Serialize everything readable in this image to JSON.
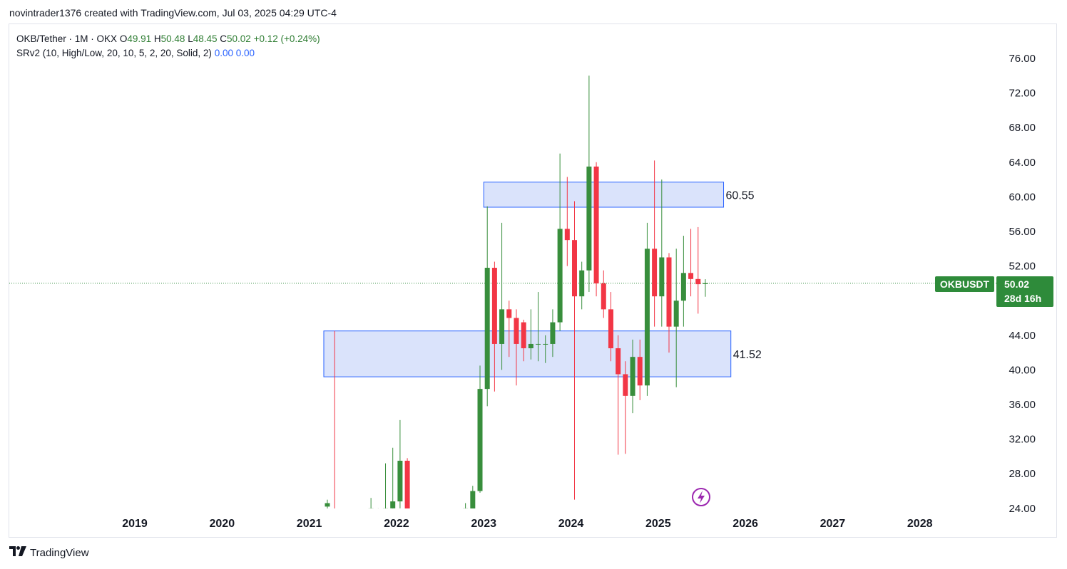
{
  "header": {
    "credit": "novintrader1376 created with TradingView.com, Jul 03, 2025 04:29 UTC-4"
  },
  "legend": {
    "symbol_line": "OKB/Tether · 1M · OKX",
    "o_label": "O",
    "o_value": "49.91",
    "h_label": "H",
    "h_value": "50.48",
    "l_label": "L",
    "l_value": "48.45",
    "c_label": "C",
    "c_value": "50.02",
    "change": "+0.12 (+0.24%)",
    "indicator": "SRv2 (10, High/Low, 20, 10, 5, 2, 20, Solid, 2)",
    "indicator_v1": "0.00",
    "indicator_v2": "0.00"
  },
  "price_tag": {
    "symbol": "OKBUSDT",
    "price": "50.02",
    "countdown": "28d 16h"
  },
  "footer": {
    "logo_text": "TradingView"
  },
  "colors": {
    "up": "#388e3c",
    "down": "#f23645",
    "zone_fill": "#d6e0fb",
    "zone_stroke": "#2962ff",
    "tag_bg": "#2e8b3a"
  },
  "chart_data": {
    "type": "candlestick",
    "interval": "1M",
    "y_ticks": [
      "76.00",
      "72.00",
      "68.00",
      "64.00",
      "60.00",
      "56.00",
      "52.00",
      "48.00",
      "44.00",
      "40.00",
      "36.00",
      "32.00",
      "28.00",
      "24.00"
    ],
    "ylim": [
      24,
      77
    ],
    "x_ticks": [
      "2019",
      "2020",
      "2021",
      "2022",
      "2023",
      "2024",
      "2025",
      "2026",
      "2027",
      "2028"
    ],
    "current_price": 50.02,
    "zones": [
      {
        "label": "60.55",
        "start": "2023-01",
        "end": "2025-10",
        "top": 61.7,
        "bottom": 58.8
      },
      {
        "label": "41.52",
        "start": "2021-03",
        "end": "2025-11",
        "top": 44.5,
        "bottom": 39.2
      }
    ],
    "candles": [
      {
        "t": "2021-03",
        "o": 24.2,
        "h": 25.0,
        "l": 23.0,
        "c": 24.6
      },
      {
        "t": "2021-04",
        "o": 23.8,
        "h": 44.5,
        "l": 23.0,
        "c": 23.0
      },
      {
        "t": "2021-09",
        "o": 23.5,
        "h": 25.2,
        "l": 23.0,
        "c": 24.0
      },
      {
        "t": "2021-10",
        "o": 23.2,
        "h": 24.0,
        "l": 22.8,
        "c": 23.8
      },
      {
        "t": "2021-11",
        "o": 23.6,
        "h": 29.2,
        "l": 23.0,
        "c": 24.0
      },
      {
        "t": "2021-12",
        "o": 24.0,
        "h": 31.0,
        "l": 23.8,
        "c": 24.8
      },
      {
        "t": "2022-01",
        "o": 24.8,
        "h": 34.2,
        "l": 24.0,
        "c": 29.5
      },
      {
        "t": "2022-02",
        "o": 29.5,
        "h": 29.8,
        "l": 23.0,
        "c": 23.2
      },
      {
        "t": "2022-10",
        "o": 23.4,
        "h": 24.6,
        "l": 23.0,
        "c": 24.0
      },
      {
        "t": "2022-11",
        "o": 23.8,
        "h": 26.6,
        "l": 23.0,
        "c": 26.0
      },
      {
        "t": "2022-12",
        "o": 26.0,
        "h": 40.5,
        "l": 25.8,
        "c": 37.8
      },
      {
        "t": "2023-01",
        "o": 37.8,
        "h": 58.9,
        "l": 35.8,
        "c": 51.8
      },
      {
        "t": "2023-02",
        "o": 51.8,
        "h": 52.5,
        "l": 37.5,
        "c": 43.0
      },
      {
        "t": "2023-03",
        "o": 43.0,
        "h": 57.0,
        "l": 40.0,
        "c": 47.0
      },
      {
        "t": "2023-04",
        "o": 47.0,
        "h": 48.0,
        "l": 41.5,
        "c": 46.0
      },
      {
        "t": "2023-05",
        "o": 46.0,
        "h": 47.0,
        "l": 38.2,
        "c": 43.0
      },
      {
        "t": "2023-06",
        "o": 45.5,
        "h": 45.8,
        "l": 41.0,
        "c": 42.5
      },
      {
        "t": "2023-07",
        "o": 42.5,
        "h": 47.0,
        "l": 41.2,
        "c": 43.0
      },
      {
        "t": "2023-08",
        "o": 43.0,
        "h": 49.0,
        "l": 41.0,
        "c": 43.0
      },
      {
        "t": "2023-09",
        "o": 43.0,
        "h": 44.0,
        "l": 40.8,
        "c": 43.0
      },
      {
        "t": "2023-10",
        "o": 43.0,
        "h": 47.0,
        "l": 41.5,
        "c": 45.5
      },
      {
        "t": "2023-11",
        "o": 45.5,
        "h": 65.0,
        "l": 44.5,
        "c": 56.3
      },
      {
        "t": "2023-12",
        "o": 56.3,
        "h": 62.3,
        "l": 52.0,
        "c": 55.0
      },
      {
        "t": "2024-01",
        "o": 55.0,
        "h": 59.5,
        "l": 25.0,
        "c": 48.5
      },
      {
        "t": "2024-02",
        "o": 48.5,
        "h": 52.5,
        "l": 47.0,
        "c": 51.5
      },
      {
        "t": "2024-03",
        "o": 51.5,
        "h": 74.0,
        "l": 49.0,
        "c": 63.5
      },
      {
        "t": "2024-04",
        "o": 63.5,
        "h": 64.0,
        "l": 48.5,
        "c": 50.0
      },
      {
        "t": "2024-05",
        "o": 50.0,
        "h": 51.5,
        "l": 46.0,
        "c": 47.0
      },
      {
        "t": "2024-06",
        "o": 47.0,
        "h": 49.0,
        "l": 41.0,
        "c": 42.5
      },
      {
        "t": "2024-07",
        "o": 42.5,
        "h": 44.0,
        "l": 30.2,
        "c": 39.5
      },
      {
        "t": "2024-08",
        "o": 39.5,
        "h": 41.0,
        "l": 30.3,
        "c": 37.0
      },
      {
        "t": "2024-09",
        "o": 37.0,
        "h": 43.5,
        "l": 35.0,
        "c": 41.5
      },
      {
        "t": "2024-10",
        "o": 41.5,
        "h": 43.5,
        "l": 36.5,
        "c": 38.2
      },
      {
        "t": "2024-11",
        "o": 38.2,
        "h": 57.0,
        "l": 37.0,
        "c": 54.0
      },
      {
        "t": "2024-12",
        "o": 54.0,
        "h": 64.2,
        "l": 45.0,
        "c": 48.5
      },
      {
        "t": "2025-01",
        "o": 48.5,
        "h": 62.0,
        "l": 45.0,
        "c": 53.0
      },
      {
        "t": "2025-02",
        "o": 53.0,
        "h": 53.5,
        "l": 42.0,
        "c": 45.0
      },
      {
        "t": "2025-03",
        "o": 45.0,
        "h": 54.0,
        "l": 38.0,
        "c": 48.0
      },
      {
        "t": "2025-04",
        "o": 48.0,
        "h": 55.5,
        "l": 45.0,
        "c": 51.2
      },
      {
        "t": "2025-05",
        "o": 51.2,
        "h": 56.3,
        "l": 48.5,
        "c": 50.5
      },
      {
        "t": "2025-06",
        "o": 50.5,
        "h": 56.5,
        "l": 46.5,
        "c": 49.9
      },
      {
        "t": "2025-07",
        "o": 49.91,
        "h": 50.48,
        "l": 48.45,
        "c": 50.02
      }
    ]
  }
}
